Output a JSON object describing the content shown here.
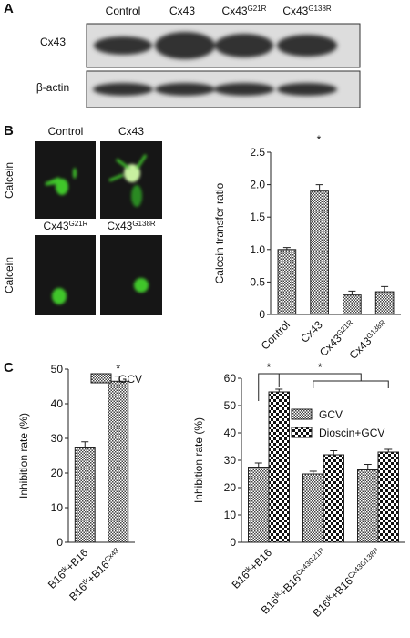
{
  "panel_labels": [
    "A",
    "B",
    "C"
  ],
  "blot": {
    "columns": [
      [
        "Control"
      ],
      [
        "Cx43"
      ],
      [
        "Cx43",
        "G21R"
      ],
      [
        "Cx43",
        "G138R"
      ]
    ],
    "rows": [
      "Cx43",
      "β-actin"
    ]
  },
  "images": {
    "titles": [
      [
        "Control"
      ],
      [
        "Cx43"
      ],
      [
        "Cx43",
        "G21R"
      ],
      [
        "Cx43",
        "G138R"
      ]
    ],
    "row_label": "Calcein"
  },
  "chart_data": [
    {
      "type": "bar",
      "ylabel": "Calcein transfer ratio",
      "categories": [
        [
          "Control"
        ],
        [
          "Cx43"
        ],
        [
          "Cx43",
          "G21R"
        ],
        [
          "Cx43",
          "G138R"
        ]
      ],
      "values": [
        1.0,
        1.9,
        0.3,
        0.35
      ],
      "errors": [
        0.03,
        0.1,
        0.06,
        0.08
      ],
      "ylim": [
        0,
        2.5
      ],
      "yticks": [
        0,
        0.5,
        {
          "value": 1,
          "label": "1.0"
        },
        1.5,
        {
          "value": 2,
          "label": "2.0"
        },
        2.5
      ],
      "annotations": [
        "*"
      ]
    },
    {
      "type": "bar",
      "ylabel": "Inhibition rate (%)",
      "categories": [
        [
          "B16",
          "tk",
          "+B16"
        ],
        [
          "B16",
          "tk",
          "+B16",
          "Cx43"
        ]
      ],
      "series": [
        {
          "name": "GCV",
          "values": [
            27.5,
            46.5
          ],
          "errors": [
            1.5,
            1.5
          ]
        }
      ],
      "ylim": [
        0,
        50
      ],
      "yticks": [
        0,
        10,
        20,
        30,
        40,
        50
      ],
      "annotations": [
        "*"
      ]
    },
    {
      "type": "bar",
      "ylabel": "Inhibition rate (%)",
      "categories": [
        [
          "B16",
          "tk",
          "+B16"
        ],
        [
          "B16",
          "tk",
          "+B16",
          "Cx43G21R"
        ],
        [
          "B16",
          "tk",
          "+B16",
          "Cx43G138R"
        ]
      ],
      "series": [
        {
          "name": "GCV",
          "values": [
            27.5,
            25,
            26.5
          ],
          "errors": [
            1.5,
            1,
            2
          ]
        },
        {
          "name": "Dioscin+GCV",
          "values": [
            55,
            32,
            33
          ],
          "errors": [
            1,
            1.5,
            1
          ]
        }
      ],
      "ylim": [
        0,
        60
      ],
      "yticks": [
        0,
        10,
        20,
        30,
        40,
        50,
        60
      ],
      "annotations": [
        "*",
        "*"
      ]
    }
  ]
}
